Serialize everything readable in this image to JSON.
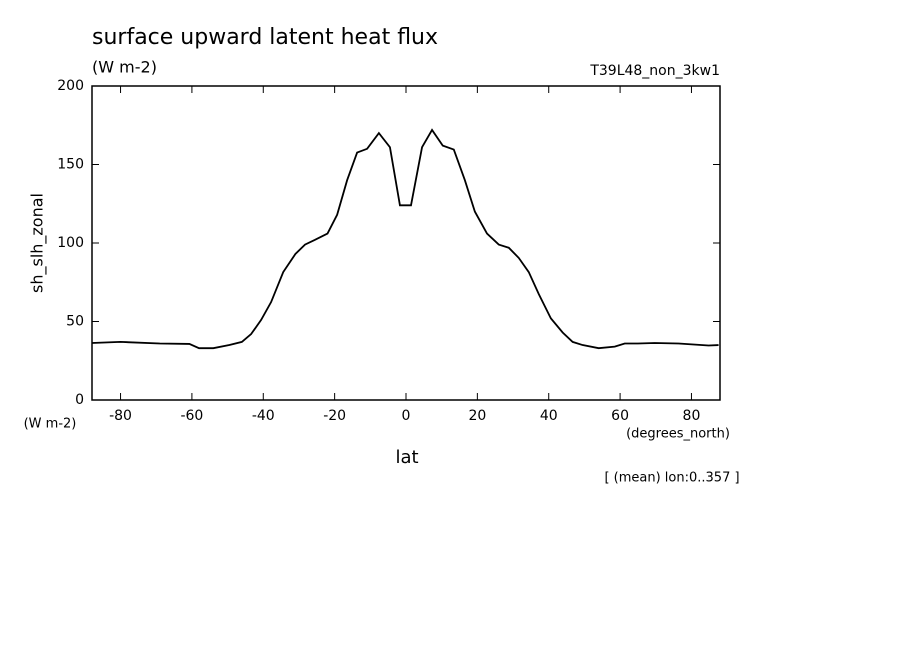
{
  "chart_data": {
    "type": "line",
    "title": "surface upward latent heat flux",
    "units": "(W m-2)",
    "run_label": "T39L48_non_3kw1",
    "y_label": "sh_slh_zonal",
    "y_units": "(W m-2)",
    "x_units": "(degrees_north)",
    "x_label": "lat",
    "footnote": "[ (mean) lon:0..357 ]",
    "color": "#000000",
    "x": [
      -88,
      -80,
      -69,
      -60.7,
      -58,
      -54,
      -49.5,
      -46,
      -43.4,
      -40.6,
      -37.8,
      -34.4,
      -31,
      -28.3,
      -25.5,
      -22,
      -19.3,
      -16.5,
      -13.7,
      -10.9,
      -7.6,
      -4.5,
      -1.7,
      1.4,
      4.5,
      7.3,
      10.3,
      13.4,
      16.5,
      19.3,
      22.7,
      26,
      28.8,
      31.6,
      34.4,
      37.2,
      40.6,
      43.9,
      46.7,
      49.5,
      54,
      58.5,
      61.3,
      65,
      69.7,
      76.4,
      84.8,
      87.6
    ],
    "values": [
      36.3,
      37,
      36,
      35.7,
      33,
      33,
      35,
      37,
      42,
      51,
      62.4,
      81.5,
      93,
      99,
      102,
      106,
      118,
      140,
      157.6,
      160,
      170,
      161,
      124,
      124,
      161,
      172,
      162,
      159.5,
      140,
      120,
      106,
      99,
      97,
      90.5,
      81.5,
      67.5,
      52,
      43,
      37,
      35,
      33,
      34,
      36,
      36,
      36.3,
      36,
      34.7,
      35
    ],
    "xlim": [
      -88,
      88
    ],
    "ylim": [
      0,
      200
    ],
    "xticks": [
      -80,
      -60,
      -40,
      -20,
      0,
      20,
      40,
      60,
      80
    ],
    "yticks": [
      0,
      50,
      100,
      150,
      200
    ]
  }
}
